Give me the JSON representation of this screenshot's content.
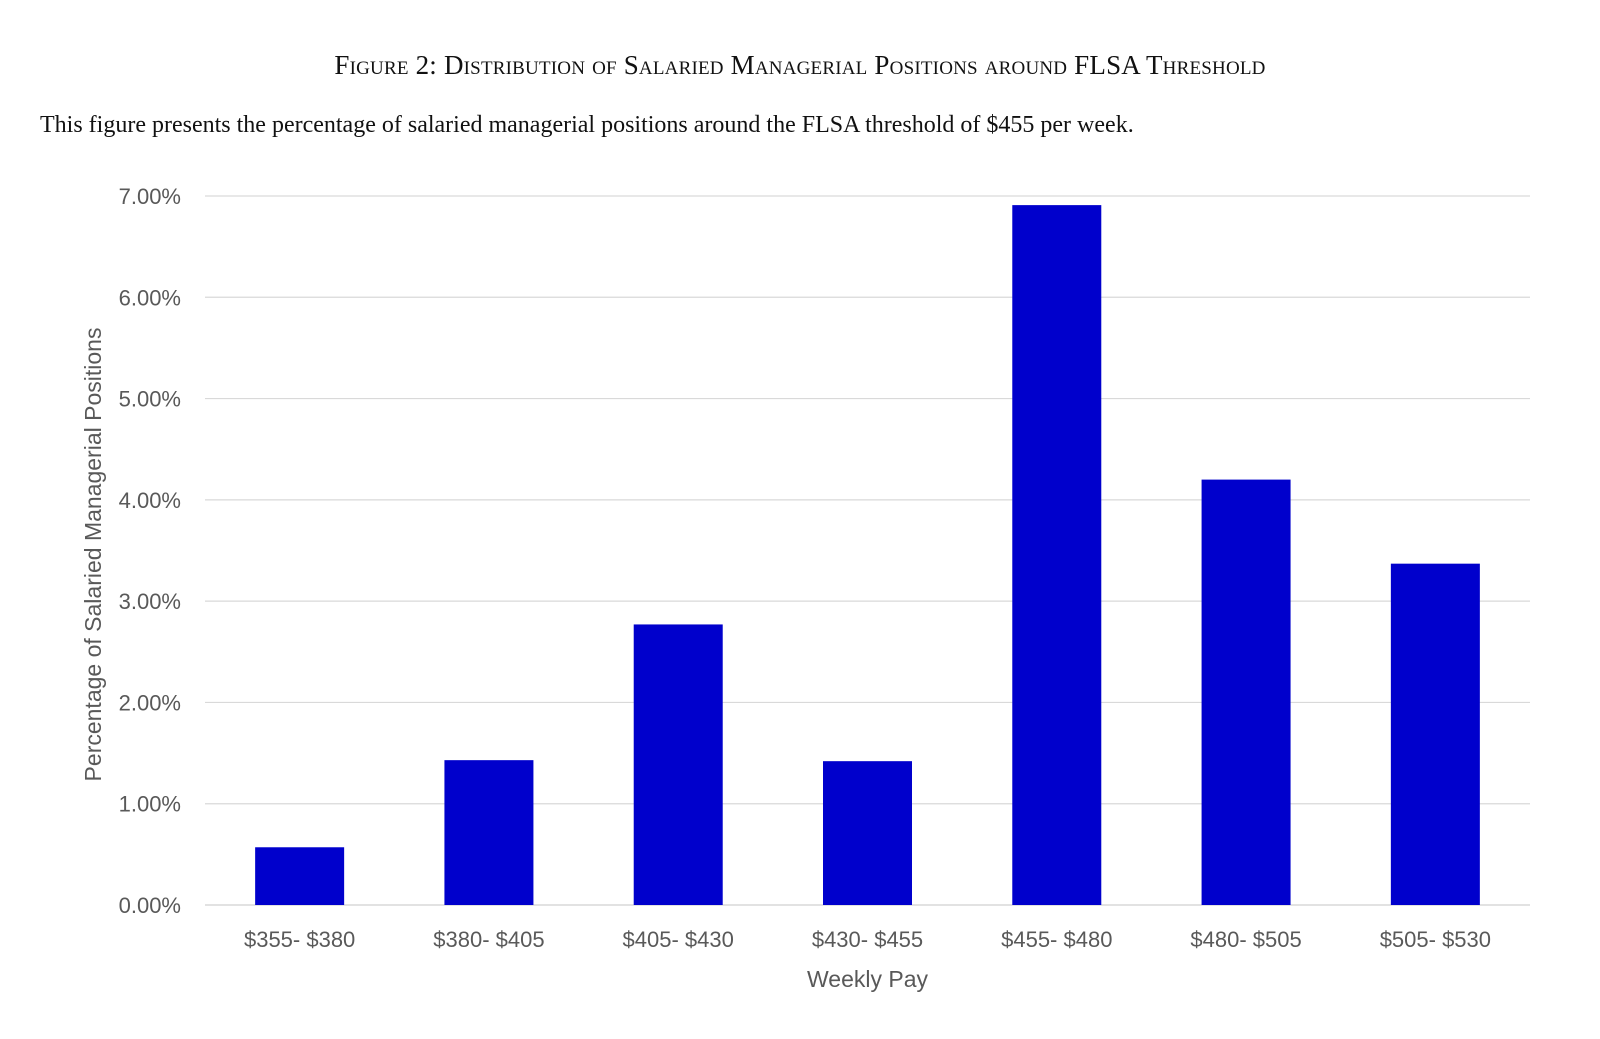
{
  "figure": {
    "title": "Figure 2: Distribution of Salaried Managerial Positions around FLSA Threshold",
    "caption": "This figure presents the percentage of salaried managerial positions around the FLSA threshold of $455 per week."
  },
  "chart_data": {
    "type": "bar",
    "title": "",
    "xlabel": "Weekly Pay",
    "ylabel": "Percentage of Salaried Managerial Positions",
    "categories": [
      "$355- $380",
      "$380- $405",
      "$405- $430",
      "$430- $455",
      "$455- $480",
      "$480- $505",
      "$505- $530"
    ],
    "series": [
      {
        "name": "Salaried Managerial Positions",
        "values": [
          0.57,
          1.43,
          2.77,
          1.42,
          6.91,
          4.2,
          3.37
        ]
      }
    ],
    "ylim": [
      0,
      7
    ],
    "yticks": [
      0,
      1,
      2,
      3,
      4,
      5,
      6,
      7
    ],
    "ytick_labels": [
      "0.00%",
      "1.00%",
      "2.00%",
      "3.00%",
      "4.00%",
      "5.00%",
      "6.00%",
      "7.00%"
    ],
    "grid": true,
    "legend": "none",
    "bar_color": "#0000CC",
    "grid_color": "#D9D9D9",
    "text_color": "#595959"
  }
}
